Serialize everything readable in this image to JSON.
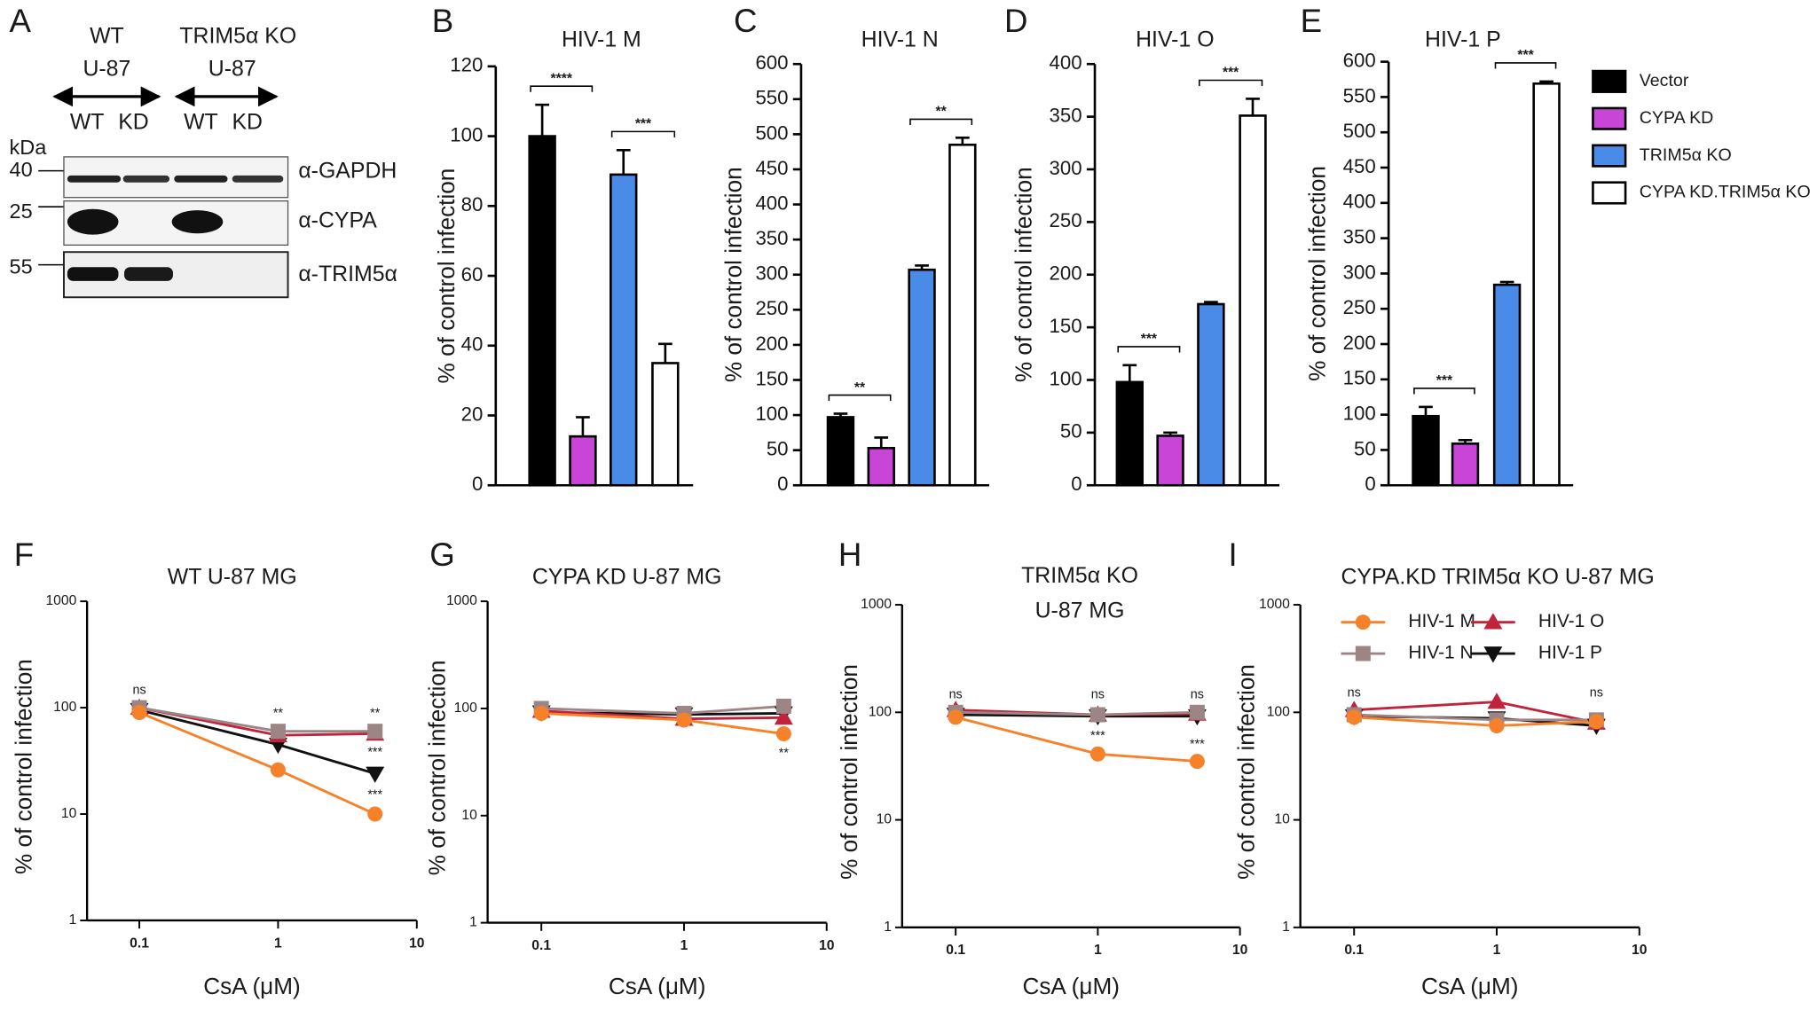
{
  "blot": {
    "panel": "A",
    "groups": [
      {
        "name": "WT",
        "cell": "U-87",
        "lanes": [
          "WT",
          "KD"
        ]
      },
      {
        "name": "TRIM5α KO",
        "cell": "U-87",
        "lanes": [
          "WT",
          "KD"
        ]
      }
    ],
    "unit": "kDa",
    "markers": [
      40,
      25,
      55
    ],
    "antibodies": [
      "α-GAPDH",
      "α-CYPA",
      "α-TRIM5α"
    ]
  },
  "chart_data": [
    {
      "type": "bar",
      "panel": "B",
      "title": "HIV-1 M",
      "ylabel": "% of control infection",
      "values": [
        100,
        14,
        89,
        35
      ],
      "errors": [
        9,
        5.5,
        7,
        5.5
      ],
      "colors": [
        "#000000",
        "#c845d8",
        "#4a8be8",
        "#ffffff"
      ],
      "ylim": [
        0,
        120
      ],
      "yticks": [
        0,
        20,
        40,
        60,
        80,
        100,
        120
      ],
      "annotations": [
        {
          "text": "****",
          "bars": [
            0,
            1
          ]
        },
        {
          "text": "***",
          "bars": [
            2,
            3
          ]
        }
      ]
    },
    {
      "type": "bar",
      "panel": "C",
      "title": "HIV-1 N",
      "ylabel": "% of control infection",
      "values": [
        97,
        53,
        307,
        485
      ],
      "errors": [
        5,
        15,
        6,
        10
      ],
      "colors": [
        "#000000",
        "#c845d8",
        "#4a8be8",
        "#ffffff"
      ],
      "ylim": [
        0,
        600
      ],
      "yticks": [
        0,
        50,
        100,
        150,
        200,
        250,
        300,
        350,
        400,
        450,
        500,
        550,
        600
      ],
      "annotations": [
        {
          "text": "**",
          "bars": [
            0,
            1
          ]
        },
        {
          "text": "**",
          "bars": [
            2,
            3
          ]
        }
      ]
    },
    {
      "type": "bar",
      "panel": "D",
      "title": "HIV-1 O",
      "ylabel": "% of control infection",
      "values": [
        98,
        47,
        172,
        351
      ],
      "errors": [
        16,
        3,
        2,
        16
      ],
      "colors": [
        "#000000",
        "#c845d8",
        "#4a8be8",
        "#ffffff"
      ],
      "ylim": [
        0,
        400
      ],
      "yticks": [
        0,
        50,
        100,
        150,
        200,
        250,
        300,
        350,
        400
      ],
      "annotations": [
        {
          "text": "***",
          "bars": [
            0,
            1
          ]
        },
        {
          "text": "***",
          "bars": [
            2,
            3
          ]
        }
      ]
    },
    {
      "type": "bar",
      "panel": "E",
      "title": "HIV-1 P",
      "ylabel": "% of control infection",
      "values": [
        98,
        59,
        284,
        569
      ],
      "errors": [
        13,
        5,
        4,
        3
      ],
      "colors": [
        "#000000",
        "#c845d8",
        "#4a8be8",
        "#ffffff"
      ],
      "ylim": [
        0,
        600
      ],
      "yticks": [
        0,
        50,
        100,
        150,
        200,
        250,
        300,
        350,
        400,
        450,
        500,
        550,
        600
      ],
      "annotations": [
        {
          "text": "***",
          "bars": [
            0,
            1
          ]
        },
        {
          "text": "***",
          "bars": [
            2,
            3
          ]
        }
      ],
      "legend": [
        {
          "name": "Vector",
          "color": "#000000"
        },
        {
          "name": "CYPA KD",
          "color": "#c845d8"
        },
        {
          "name": "TRIM5α KO",
          "color": "#4a8be8"
        },
        {
          "name": "CYPA KD.TRIM5α KO",
          "color": "#ffffff"
        }
      ]
    },
    {
      "type": "line",
      "panel": "F",
      "title": "WT U-87 MG",
      "xlabel": "CsA (μM)",
      "ylabel": "% of control infection",
      "log_x": true,
      "log_y": true,
      "x": [
        0.1,
        1,
        5
      ],
      "xlim": [
        0.042,
        10
      ],
      "xticks": [
        0.1,
        1,
        10
      ],
      "ylim": [
        1,
        1000
      ],
      "yticks": [
        1,
        10,
        100,
        1000
      ],
      "series": [
        {
          "color": "#f5822a",
          "marker": "circle",
          "values": [
            90,
            26,
            10
          ]
        },
        {
          "color": "#9e8585",
          "marker": "square",
          "values": [
            100,
            60,
            60
          ]
        },
        {
          "color": "#c0243c",
          "marker": "triangle-up",
          "values": [
            100,
            55,
            57
          ]
        },
        {
          "color": "#111111",
          "marker": "triangle-down",
          "values": [
            95,
            45,
            24
          ]
        }
      ],
      "annotations": [
        {
          "text": "ns",
          "x": 0.1,
          "y": 145
        },
        {
          "text": "**",
          "x": 1,
          "y": 88
        },
        {
          "text": "**",
          "x": 5,
          "y": 88
        },
        {
          "text": "***",
          "x": 5,
          "y": 38
        },
        {
          "text": "***",
          "x": 5,
          "y": 15
        }
      ]
    },
    {
      "type": "line",
      "panel": "G",
      "title": "CYPA KD U-87 MG",
      "xlabel": "CsA (μM)",
      "ylabel": "% of control infection",
      "log_x": true,
      "log_y": true,
      "x": [
        0.1,
        1,
        5
      ],
      "xlim": [
        0.042,
        10
      ],
      "xticks": [
        0.1,
        1,
        10
      ],
      "ylim": [
        1,
        1000
      ],
      "yticks": [
        1,
        10,
        100,
        1000
      ],
      "series": [
        {
          "color": "#f5822a",
          "marker": "circle",
          "values": [
            90,
            78,
            58
          ]
        },
        {
          "color": "#9e8585",
          "marker": "square",
          "values": [
            100,
            90,
            105
          ]
        },
        {
          "color": "#c0243c",
          "marker": "triangle-up",
          "values": [
            95,
            80,
            82
          ]
        },
        {
          "color": "#111111",
          "marker": "triangle-down",
          "values": [
            92,
            88,
            90
          ]
        }
      ],
      "annotations": [
        {
          "text": "**",
          "x": 5,
          "y": 38
        }
      ]
    },
    {
      "type": "line",
      "panel": "H",
      "title": "TRIM5α KO",
      "subtitle": "U-87 MG",
      "xlabel": "CsA (μM)",
      "ylabel": "% of control infection",
      "log_x": true,
      "log_y": true,
      "x": [
        0.1,
        1,
        5
      ],
      "xlim": [
        0.042,
        10
      ],
      "xticks": [
        0.1,
        1,
        10
      ],
      "ylim": [
        1,
        1000
      ],
      "yticks": [
        1,
        10,
        100,
        1000
      ],
      "series": [
        {
          "color": "#f5822a",
          "marker": "circle",
          "values": [
            90,
            41,
            35
          ]
        },
        {
          "color": "#9e8585",
          "marker": "square",
          "values": [
            100,
            95,
            100
          ]
        },
        {
          "color": "#c0243c",
          "marker": "triangle-up",
          "values": [
            105,
            95,
            97
          ]
        },
        {
          "color": "#111111",
          "marker": "triangle-down",
          "values": [
            95,
            92,
            92
          ]
        }
      ],
      "annotations": [
        {
          "text": "ns",
          "x": 0.1,
          "y": 145
        },
        {
          "text": "ns",
          "x": 1,
          "y": 145
        },
        {
          "text": "ns",
          "x": 5,
          "y": 145
        },
        {
          "text": "***",
          "x": 1,
          "y": 60
        },
        {
          "text": "***",
          "x": 5,
          "y": 50
        }
      ]
    },
    {
      "type": "line",
      "panel": "I",
      "title": "CYPA.KD TRIM5α KO U-87 MG",
      "xlabel": "CsA (μM)",
      "ylabel": "% of control infection",
      "log_x": true,
      "log_y": true,
      "x": [
        0.1,
        1,
        5
      ],
      "xlim": [
        0.042,
        10
      ],
      "xticks": [
        0.1,
        1,
        10
      ],
      "ylim": [
        1,
        1000
      ],
      "yticks": [
        1,
        10,
        100,
        1000
      ],
      "series": [
        {
          "name": "HIV-1 M",
          "color": "#f5822a",
          "marker": "circle",
          "values": [
            90,
            75,
            82
          ]
        },
        {
          "name": "HIV-1 N",
          "color": "#9e8585",
          "marker": "square",
          "values": [
            95,
            85,
            85
          ]
        },
        {
          "name": "HIV-1 O",
          "color": "#c0243c",
          "marker": "triangle-up",
          "values": [
            105,
            125,
            80
          ]
        },
        {
          "name": "HIV-1 P",
          "color": "#111111",
          "marker": "triangle-down",
          "values": [
            92,
            88,
            75
          ]
        }
      ],
      "annotations": [
        {
          "text": "ns",
          "x": 0.1,
          "y": 150
        },
        {
          "text": "ns",
          "x": 5,
          "y": 150
        }
      ]
    }
  ]
}
